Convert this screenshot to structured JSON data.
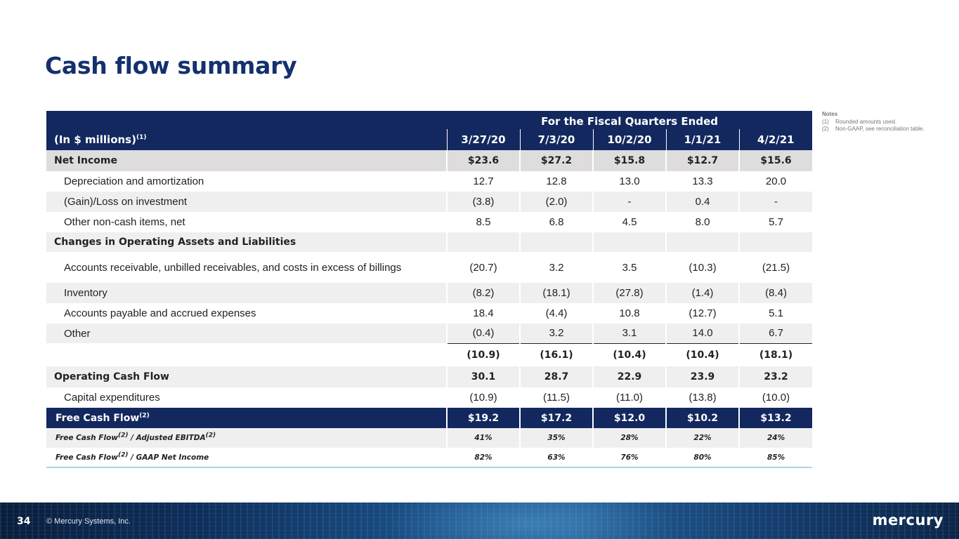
{
  "title": "Cash flow summary",
  "notes": {
    "heading": "Notes",
    "items": [
      {
        "num": "(1)",
        "text": "Rounded amounts used."
      },
      {
        "num": "(2)",
        "text": "Non-GAAP, see reconciliation table."
      }
    ]
  },
  "table": {
    "span_header": "For the Fiscal Quarters Ended",
    "unit_label": "(In $ millions)",
    "unit_note": "(1)",
    "periods": [
      "3/27/20",
      "7/3/20",
      "10/2/20",
      "1/1/21",
      "4/2/21"
    ],
    "rows": {
      "net_income": {
        "label": "Net Income",
        "values": [
          "$23.6",
          "$27.2",
          "$15.8",
          "$12.7",
          "$15.6"
        ]
      },
      "depreciation": {
        "label": "Depreciation and amortization",
        "values": [
          "12.7",
          "12.8",
          "13.0",
          "13.3",
          "20.0"
        ]
      },
      "gain_loss": {
        "label": "(Gain)/Loss on investment",
        "values": [
          "(3.8)",
          "(2.0)",
          "-",
          "0.4",
          "-"
        ]
      },
      "other_noncash": {
        "label": "Other non-cash items, net",
        "values": [
          "8.5",
          "6.8",
          "4.5",
          "8.0",
          "5.7"
        ]
      },
      "changes_header": {
        "label": "Changes in Operating Assets and Liabilities"
      },
      "accounts_receivable": {
        "label": "Accounts receivable, unbilled receivables, and costs in excess of billings",
        "values": [
          "(20.7)",
          "3.2",
          "3.5",
          "(10.3)",
          "(21.5)"
        ]
      },
      "inventory": {
        "label": "Inventory",
        "values": [
          "(8.2)",
          "(18.1)",
          "(27.8)",
          "(1.4)",
          "(8.4)"
        ]
      },
      "accounts_payable": {
        "label": "Accounts payable and accrued expenses",
        "values": [
          "18.4",
          "(4.4)",
          "10.8",
          "(12.7)",
          "5.1"
        ]
      },
      "other": {
        "label": "Other",
        "values": [
          "(0.4)",
          "3.2",
          "3.1",
          "14.0",
          "6.7"
        ]
      },
      "subtotal": {
        "label": "",
        "values": [
          "(10.9)",
          "(16.1)",
          "(10.4)",
          "(10.4)",
          "(18.1)"
        ]
      },
      "operating_cash_flow": {
        "label": "Operating Cash Flow",
        "values": [
          "30.1",
          "28.7",
          "22.9",
          "23.9",
          "23.2"
        ]
      },
      "capex": {
        "label": "Capital expenditures",
        "values": [
          "(10.9)",
          "(11.5)",
          "(11.0)",
          "(13.8)",
          "(10.0)"
        ]
      },
      "free_cash_flow": {
        "label": "Free Cash Flow",
        "note": "(2)",
        "values": [
          "$19.2",
          "$17.2",
          "$12.0",
          "$10.2",
          "$13.2"
        ]
      },
      "fcf_ebitda": {
        "label_a": "Free Cash Flow",
        "note_a": "(2)",
        "label_b": " / Adjusted EBITDA",
        "note_b": "(2)",
        "values": [
          "41%",
          "35%",
          "28%",
          "22%",
          "24%"
        ]
      },
      "fcf_net_income": {
        "label_a": "Free Cash Flow",
        "note_a": "(2)",
        "label_b": " / GAAP Net Income",
        "values": [
          "82%",
          "63%",
          "76%",
          "80%",
          "85%"
        ]
      }
    }
  },
  "footer": {
    "page_number": "34",
    "copyright": "© Mercury Systems, Inc.",
    "logo": "mercury"
  },
  "colors": {
    "title": "#14306e",
    "header_bg": "#13285e",
    "row_gray": "#dedcdc",
    "row_light": "#efefef",
    "bottom_rule": "#a9d6ea"
  }
}
